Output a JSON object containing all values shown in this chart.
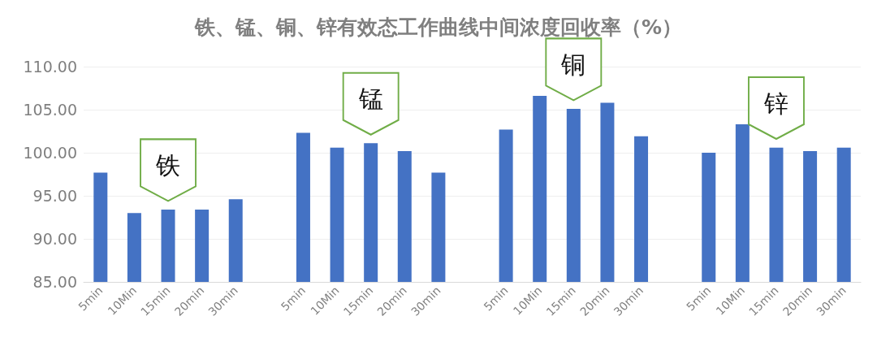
{
  "chart_data": {
    "type": "bar",
    "title": "铁、锰、铜、锌有效态工作曲线中间浓度回收率（%）",
    "categories": [
      "5min",
      "10Min",
      "15min",
      "20min",
      "30min",
      null,
      "5min",
      "10Min",
      "15min",
      "20min",
      "30min",
      null,
      "5min",
      "10Min",
      "15min",
      "20min",
      "30min",
      null,
      "5min",
      "10Min",
      "15min",
      "20min",
      "30min"
    ],
    "values": [
      97.7,
      93.0,
      93.4,
      93.4,
      94.6,
      null,
      102.3,
      100.6,
      101.1,
      100.2,
      97.7,
      null,
      102.7,
      106.6,
      105.1,
      105.8,
      101.9,
      null,
      100.0,
      103.3,
      100.6,
      100.2,
      100.6
    ],
    "color": "#4472c4",
    "ylim": [
      85,
      110
    ],
    "yticks": [
      {
        "value": 85,
        "label": "85.00"
      },
      {
        "value": 90,
        "label": "90.00"
      },
      {
        "value": 95,
        "label": "95.00"
      },
      {
        "value": 100,
        "label": "100.00"
      },
      {
        "value": 105,
        "label": "105.00"
      },
      {
        "value": 110,
        "label": "110.00"
      }
    ],
    "grid": "y",
    "annotations": [
      "铁",
      "锰",
      "铜",
      "锌"
    ]
  }
}
